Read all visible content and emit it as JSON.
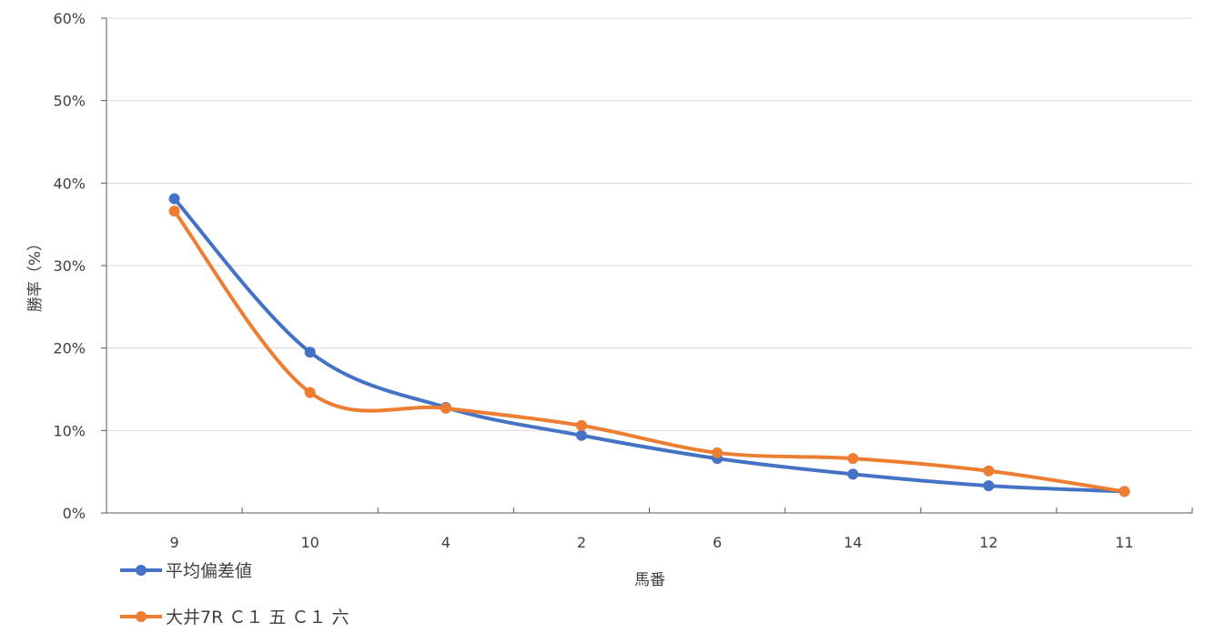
{
  "chart_data": {
    "type": "line",
    "title": "",
    "xlabel": "馬番",
    "ylabel": "勝率（%）",
    "categories": [
      "9",
      "10",
      "4",
      "2",
      "6",
      "14",
      "12",
      "11"
    ],
    "y_ticks": [
      "0%",
      "10%",
      "20%",
      "30%",
      "40%",
      "50%",
      "60%"
    ],
    "ylim": [
      0,
      60
    ],
    "grid": true,
    "smooth": true,
    "legend": "bottom-left",
    "series": [
      {
        "name": "平均偏差値",
        "color": "#4472C4",
        "values": [
          38.1,
          19.5,
          12.8,
          9.4,
          6.6,
          4.7,
          3.3,
          2.6
        ]
      },
      {
        "name": "大井7R Ｃ１ 五 Ｃ１ 六",
        "color": "#ED7D31",
        "values": [
          36.6,
          14.6,
          12.7,
          10.6,
          7.3,
          6.6,
          5.1,
          2.6
        ]
      }
    ]
  }
}
